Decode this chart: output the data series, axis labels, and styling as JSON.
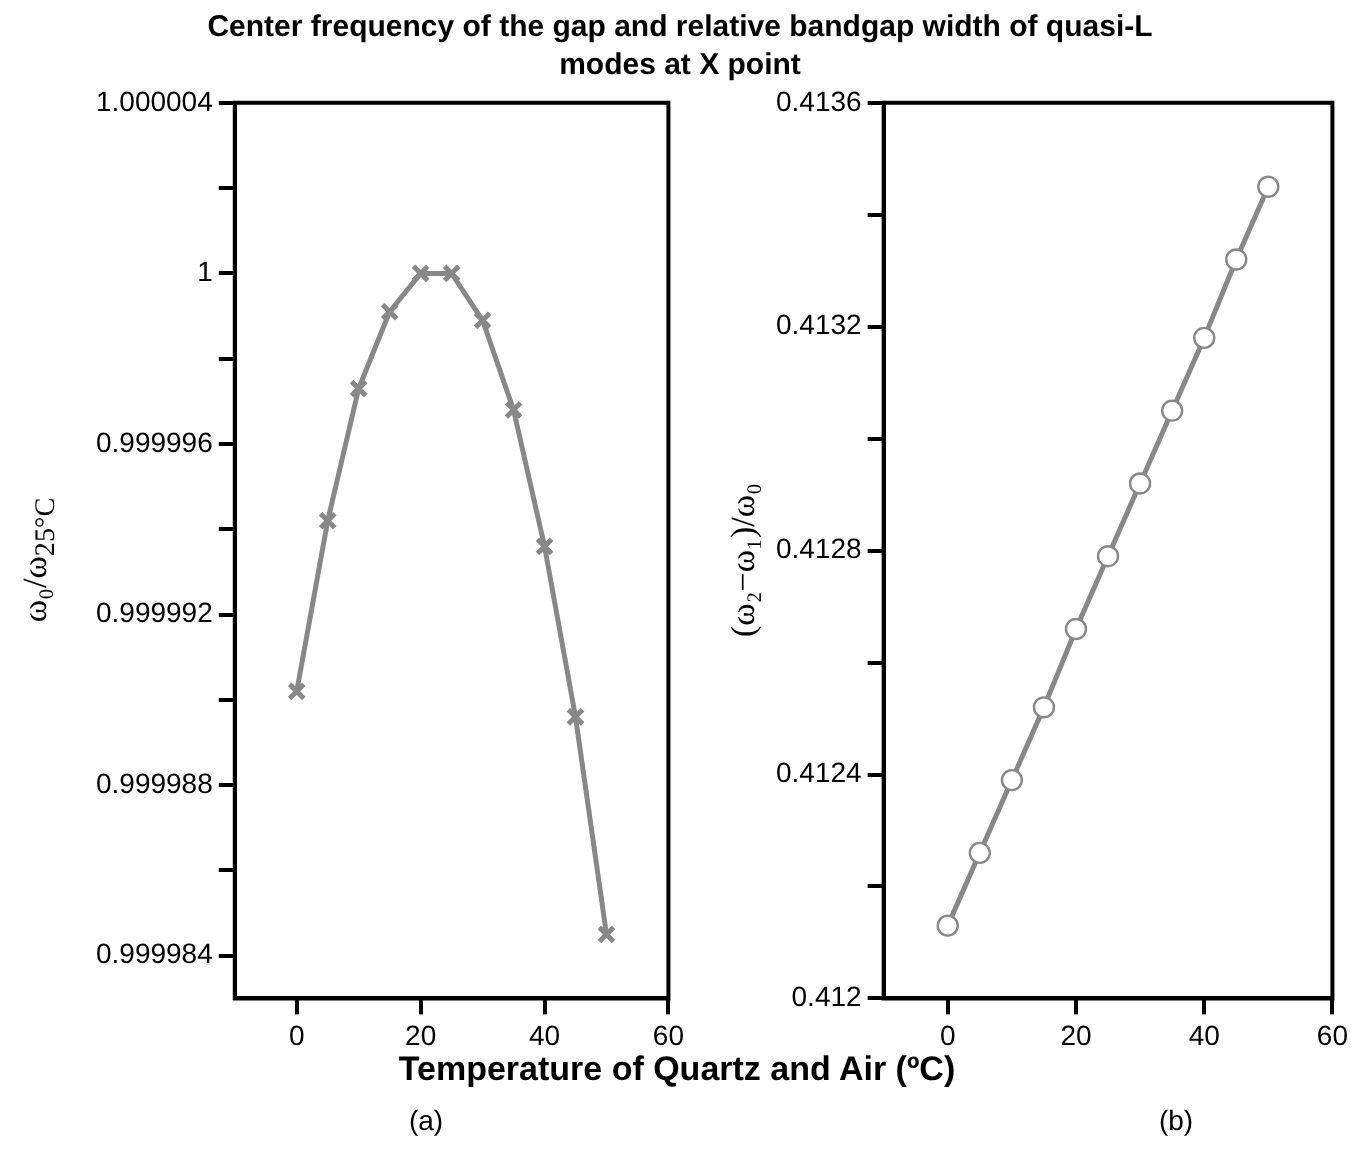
{
  "chart_data": [
    {
      "type": "line",
      "title": "Center frequency of the gap and relative bandgap width of quasi-L modes at X point",
      "xlabel": "Temperature of Quartz and Air (ºC)",
      "ylabel": "ω₀/ω$_{25°C}$",
      "annotations": [
        "(a)"
      ],
      "x": [
        0,
        5,
        10,
        15,
        20,
        25,
        30,
        35,
        40,
        45,
        50
      ],
      "series": [
        {
          "color": "#888888",
          "values": [
            0.9999902,
            0.9999942,
            0.9999973,
            0.9999991,
            1.0,
            1.0,
            0.9999989,
            0.9999968,
            0.9999936,
            0.9999896,
            0.9999845
          ]
        }
      ],
      "xlim": [
        -10,
        60
      ],
      "xticks": [
        0,
        20,
        40,
        60
      ],
      "ylim": [
        0.999983,
        1.000004
      ],
      "yticks": [
        0.999984,
        {
          "value": 0.999986,
          "label": null
        },
        0.999988,
        {
          "value": 0.99999,
          "label": null
        },
        0.999992,
        {
          "value": 0.999994,
          "label": null
        },
        0.999996,
        {
          "value": 0.999998,
          "label": null
        },
        1,
        {
          "value": 1.000002,
          "label": null
        },
        1.000004
      ],
      "grid": false,
      "legend": false,
      "marker": "cross",
      "line_style": "solid"
    },
    {
      "type": "line",
      "ylabel": "(ω₂−ω₁)/ω₀",
      "annotations": [
        "(b)"
      ],
      "x": [
        0,
        5,
        10,
        15,
        20,
        25,
        30,
        35,
        40,
        45,
        50
      ],
      "series": [
        {
          "color": "#888888",
          "values": [
            0.41213,
            0.41226,
            0.41239,
            0.41252,
            0.41266,
            0.41279,
            0.41292,
            0.41305,
            0.41318,
            0.41332,
            0.41345
          ]
        }
      ],
      "xlim": [
        -10,
        60
      ],
      "xticks": [
        0,
        20,
        40,
        60
      ],
      "ylim": [
        0.412,
        0.4136
      ],
      "yticks": [
        0.412,
        {
          "value": 0.4122,
          "label": null
        },
        0.4124,
        {
          "value": 0.4126,
          "label": null
        },
        0.4128,
        {
          "value": 0.413,
          "label": null
        },
        0.4132,
        {
          "value": 0.4134,
          "label": null
        },
        0.4136
      ],
      "grid": false,
      "legend": false,
      "marker": "circle",
      "line_style": "solid"
    }
  ]
}
